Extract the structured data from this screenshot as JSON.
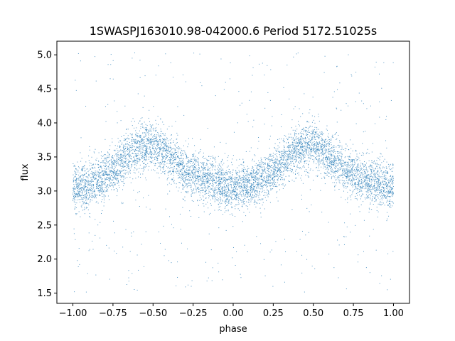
{
  "chart_data": {
    "type": "scatter",
    "title": "1SWASPJ163010.98-042000.6 Period 5172.51025s",
    "xlabel": "phase",
    "ylabel": "flux",
    "xlim": [
      -1.1,
      1.1
    ],
    "ylim": [
      1.35,
      5.2
    ],
    "xticks": [
      -1.0,
      -0.75,
      -0.5,
      -0.25,
      0.0,
      0.25,
      0.5,
      0.75,
      1.0
    ],
    "xtick_labels": [
      "−1.00",
      "−0.75",
      "−0.50",
      "−0.25",
      "0.00",
      "0.25",
      "0.50",
      "0.75",
      "1.00"
    ],
    "yticks": [
      1.5,
      2.0,
      2.5,
      3.0,
      3.5,
      4.0,
      4.5,
      5.0
    ],
    "ytick_labels": [
      "1.5",
      "2.0",
      "2.5",
      "3.0",
      "3.5",
      "4.0",
      "4.5",
      "5.0"
    ],
    "grid": false,
    "legend": false,
    "point_color": "#1f77b4",
    "phase_range": [
      -1.0,
      1.0
    ],
    "flux_range": [
      1.5,
      5.05
    ],
    "light_curve": {
      "phase": [
        -1.0,
        -0.9,
        -0.8,
        -0.7,
        -0.6,
        -0.5,
        -0.4,
        -0.3,
        -0.2,
        -0.1,
        0.0,
        0.1,
        0.2,
        0.3,
        0.4,
        0.5,
        0.6,
        0.7,
        0.8,
        0.9,
        1.0
      ],
      "flux": [
        3.05,
        3.08,
        3.2,
        3.42,
        3.62,
        3.68,
        3.52,
        3.3,
        3.18,
        3.12,
        3.05,
        3.08,
        3.2,
        3.42,
        3.62,
        3.68,
        3.52,
        3.3,
        3.18,
        3.12,
        3.05
      ]
    },
    "scatter_sigma": 0.17,
    "outlier_fraction": 0.06
  }
}
